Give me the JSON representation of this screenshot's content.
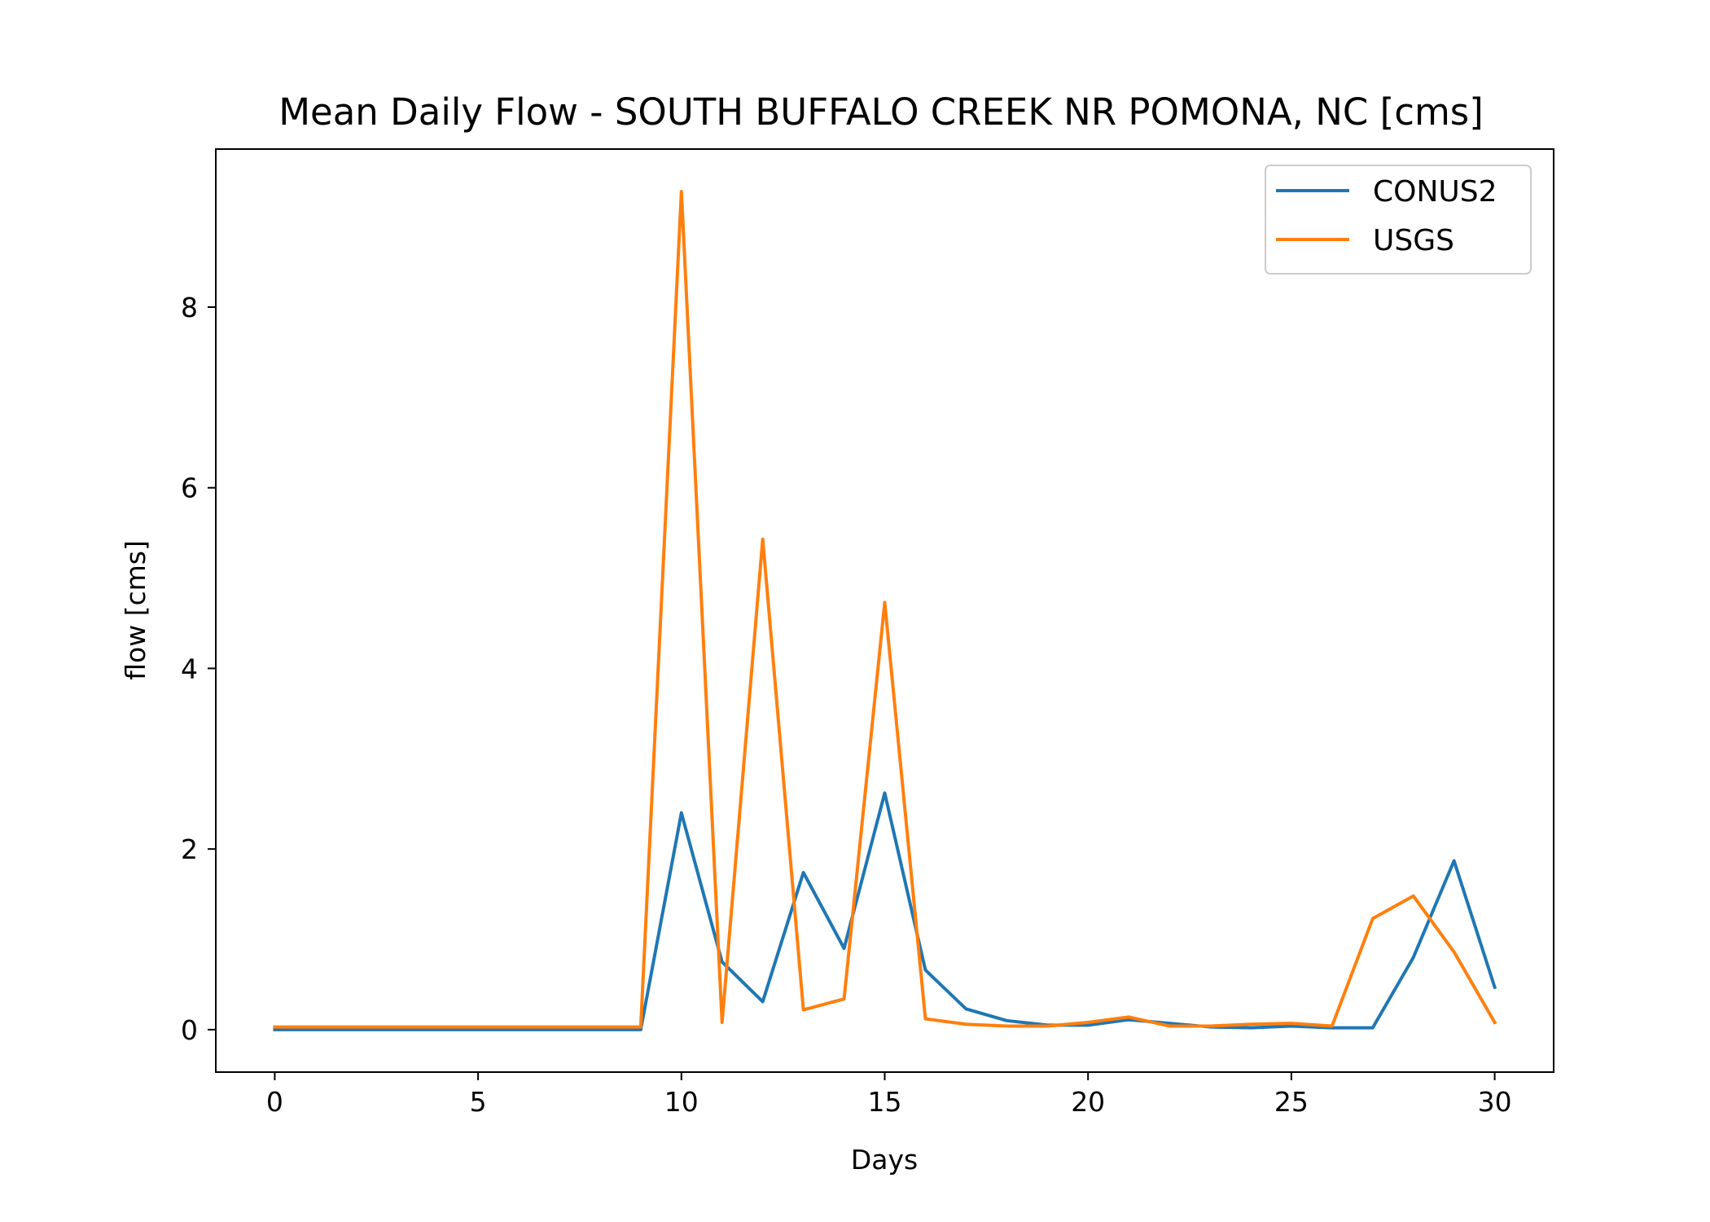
{
  "chart_data": {
    "type": "line",
    "title": "Mean Daily Flow - SOUTH BUFFALO CREEK NR POMONA, NC [cms]",
    "xlabel": "Days",
    "ylabel": "flow [cms]",
    "xlim": [
      -1.45,
      31.45
    ],
    "ylim": [
      -0.47,
      9.75
    ],
    "xticks": [
      0,
      5,
      10,
      15,
      20,
      25,
      30
    ],
    "yticks": [
      0,
      2,
      4,
      6,
      8
    ],
    "grid": false,
    "legend_position": "top-right",
    "x": [
      0,
      1,
      2,
      3,
      4,
      5,
      6,
      7,
      8,
      9,
      10,
      11,
      12,
      13,
      14,
      15,
      16,
      17,
      18,
      19,
      20,
      21,
      22,
      23,
      24,
      25,
      26,
      27,
      28,
      29,
      30
    ],
    "series": [
      {
        "name": "CONUS2",
        "color": "#1f77b4",
        "values": [
          0.0,
          0.0,
          0.0,
          0.0,
          0.0,
          0.0,
          0.0,
          0.0,
          0.0,
          0.0,
          2.4,
          0.75,
          0.31,
          1.74,
          0.9,
          2.62,
          0.66,
          0.23,
          0.1,
          0.05,
          0.05,
          0.11,
          0.07,
          0.03,
          0.02,
          0.04,
          0.02,
          0.02,
          0.8,
          1.87,
          0.47
        ]
      },
      {
        "name": "USGS",
        "color": "#ff7f0e",
        "values": [
          0.03,
          0.03,
          0.03,
          0.03,
          0.03,
          0.03,
          0.03,
          0.03,
          0.03,
          0.03,
          9.28,
          0.08,
          5.43,
          0.22,
          0.34,
          4.73,
          0.12,
          0.06,
          0.04,
          0.04,
          0.08,
          0.14,
          0.04,
          0.04,
          0.06,
          0.07,
          0.04,
          1.23,
          1.48,
          0.86,
          0.08
        ]
      }
    ]
  }
}
